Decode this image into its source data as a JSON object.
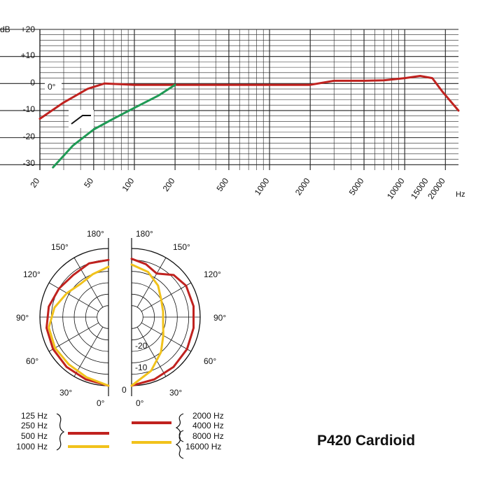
{
  "chart_data": [
    {
      "type": "line",
      "title": "",
      "x_scale": "log",
      "xlabel": "Hz",
      "ylabel": "dB",
      "xlim": [
        20,
        25000
      ],
      "ylim": [
        -32,
        20
      ],
      "x_ticks": [
        "20",
        "50",
        "100",
        "200",
        "500",
        "1000",
        "2000",
        "5000",
        "10000",
        "15000",
        "20000"
      ],
      "y_ticks": [
        "+20",
        "+10",
        "0",
        "-10",
        "-20",
        "-30"
      ],
      "annotation": "0°",
      "series": [
        {
          "color": "#c0221f",
          "points": [
            [
              20,
              -13
            ],
            [
              30,
              -7
            ],
            [
              45,
              -2
            ],
            [
              60,
              0
            ],
            [
              100,
              -0.5
            ],
            [
              200,
              -0.5
            ],
            [
              500,
              -0.5
            ],
            [
              1000,
              -0.5
            ],
            [
              2000,
              -0.5
            ],
            [
              3000,
              1
            ],
            [
              5000,
              1
            ],
            [
              7000,
              1.2
            ],
            [
              10000,
              2
            ],
            [
              13000,
              2.8
            ],
            [
              16000,
              2
            ],
            [
              19000,
              -3
            ],
            [
              25000,
              -10
            ]
          ]
        },
        {
          "color": "#1f9a55",
          "points": [
            [
              25,
              -31
            ],
            [
              35,
              -23
            ],
            [
              50,
              -17
            ],
            [
              70,
              -13
            ],
            [
              100,
              -9
            ],
            [
              150,
              -4.5
            ],
            [
              200,
              -0.5
            ]
          ]
        }
      ],
      "filter_icon": "highpass-filter-icon"
    },
    {
      "type": "polar",
      "angle_labels_left": [
        "180°",
        "150°",
        "120°",
        "90°",
        "60°",
        "30°",
        "0°"
      ],
      "angle_labels_right": [
        "180°",
        "150°",
        "120°",
        "90°",
        "60°",
        "30°",
        "0°"
      ],
      "radial_labels": [
        "-20",
        "-10",
        "0"
      ],
      "r_range_db": [
        -30,
        0
      ],
      "left_half": [
        {
          "color": "#c0221f",
          "points_deg_db": [
            [
              0,
              0
            ],
            [
              20,
              -1
            ],
            [
              40,
              -1.5
            ],
            [
              60,
              -2
            ],
            [
              80,
              -2.5
            ],
            [
              100,
              -3.5
            ],
            [
              120,
              -5
            ],
            [
              140,
              -6
            ],
            [
              160,
              -5
            ],
            [
              180,
              -5
            ]
          ]
        },
        {
          "color": "#f1c21b",
          "points_deg_db": [
            [
              0,
              0
            ],
            [
              20,
              -2
            ],
            [
              40,
              -3
            ],
            [
              60,
              -3
            ],
            [
              80,
              -3.5
            ],
            [
              100,
              -6
            ],
            [
              120,
              -9
            ],
            [
              140,
              -11
            ],
            [
              160,
              -10
            ],
            [
              180,
              -8
            ]
          ]
        }
      ],
      "right_half": [
        {
          "color": "#c0221f",
          "points_deg_db": [
            [
              0,
              0
            ],
            [
              20,
              -1
            ],
            [
              40,
              -1.5
            ],
            [
              60,
              -2
            ],
            [
              80,
              -2.5
            ],
            [
              100,
              -2.5
            ],
            [
              120,
              -2.5
            ],
            [
              135,
              -4
            ],
            [
              150,
              -8
            ],
            [
              165,
              -6
            ],
            [
              180,
              -4.5
            ]
          ]
        },
        {
          "color": "#f1c21b",
          "points_deg_db": [
            [
              0,
              0
            ],
            [
              20,
              -5
            ],
            [
              40,
              -10
            ],
            [
              60,
              -14
            ],
            [
              80,
              -16
            ],
            [
              100,
              -16
            ],
            [
              120,
              -15
            ],
            [
              140,
              -12
            ],
            [
              160,
              -9
            ],
            [
              180,
              -7
            ]
          ]
        }
      ],
      "legend_left": {
        "groups": [
          {
            "labels": [
              "125 Hz",
              "250 Hz",
              "500 Hz"
            ],
            "color": "#c0221f"
          },
          {
            "labels": [
              "1000 Hz"
            ],
            "color": "#f1c21b"
          }
        ]
      },
      "legend_right": {
        "groups": [
          {
            "labels": [
              "2000 Hz",
              "4000 Hz"
            ],
            "color": "#c0221f"
          },
          {
            "labels": [
              "8000 Hz",
              "16000 Hz"
            ],
            "color": "#f1c21b"
          }
        ]
      }
    }
  ],
  "model_title": "P420 Cardioid"
}
